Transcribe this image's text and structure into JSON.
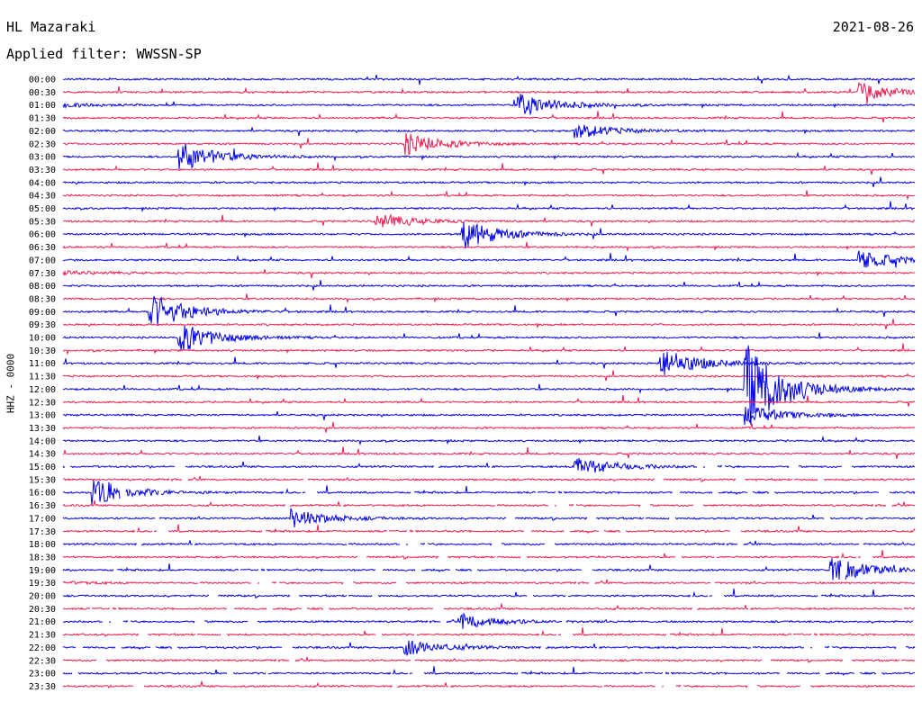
{
  "header": {
    "station": "HL Mazaraki",
    "filter": "Applied filter: WWSSN-SP",
    "date": "2021-08-26"
  },
  "channel_label": "HHZ - 0000",
  "colors": {
    "even_hour": "#0000e6",
    "half_hour": "#ee1b4f"
  },
  "chart_data": {
    "type": "line",
    "title": "",
    "ylabel": "HHZ - 0000",
    "row_labels": [
      "00:00",
      "00:30",
      "01:00",
      "01:30",
      "02:00",
      "02:30",
      "03:00",
      "03:30",
      "04:00",
      "04:30",
      "05:00",
      "05:30",
      "06:00",
      "06:30",
      "07:00",
      "07:30",
      "08:00",
      "08:30",
      "09:00",
      "09:30",
      "10:00",
      "10:30",
      "11:00",
      "11:30",
      "12:00",
      "12:30",
      "13:00",
      "13:30",
      "14:00",
      "14:30",
      "15:00",
      "15:30",
      "16:00",
      "16:30",
      "17:00",
      "17:30",
      "18:00",
      "18:30",
      "19:00",
      "19:30",
      "20:00",
      "20:30",
      "21:00",
      "21:30",
      "22:00",
      "22:30",
      "23:00",
      "23:30"
    ],
    "minutes_per_line": 30,
    "events": [
      {
        "time": "00:58",
        "rel_amp": 0.6
      },
      {
        "time": "01:16",
        "rel_amp": 0.8
      },
      {
        "time": "02:18",
        "rel_amp": 0.5
      },
      {
        "time": "02:42",
        "rel_amp": 0.7
      },
      {
        "time": "03:04",
        "rel_amp": 1.0
      },
      {
        "time": "05:41",
        "rel_amp": 0.5
      },
      {
        "time": "06:14",
        "rel_amp": 1.0
      },
      {
        "time": "07:28",
        "rel_amp": 0.6
      },
      {
        "time": "09:03",
        "rel_amp": 1.2
      },
      {
        "time": "10:04",
        "rel_amp": 1.0
      },
      {
        "time": "11:21",
        "rel_amp": 1.0
      },
      {
        "time": "12:24",
        "rel_amp": 3.0
      },
      {
        "time": "13:24",
        "rel_amp": 0.6
      },
      {
        "time": "15:18",
        "rel_amp": 0.7
      },
      {
        "time": "16:01",
        "rel_amp": 0.9
      },
      {
        "time": "17:08",
        "rel_amp": 0.6
      },
      {
        "time": "19:27",
        "rel_amp": 0.9
      },
      {
        "time": "21:14",
        "rel_amp": 0.5
      },
      {
        "time": "22:12",
        "rel_amp": 0.5
      }
    ],
    "data_gaps_from": "15:00",
    "grid": false,
    "legend": "none"
  }
}
